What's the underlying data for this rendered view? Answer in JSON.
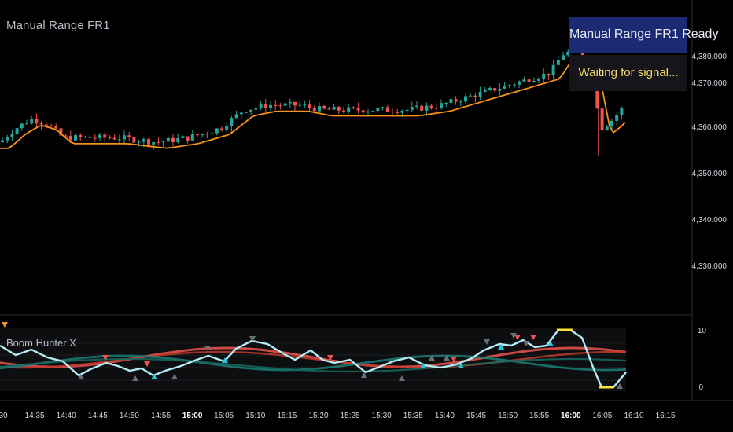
{
  "price_pane": {
    "title": "Manual Range FR1",
    "y_ticks": [
      "4,380.000",
      "4,370.000",
      "4,360.000",
      "4,350.000",
      "4,340.000",
      "4,330.000"
    ]
  },
  "status": {
    "ready_label": "Manual Range FR1 Ready",
    "waiting_label": "Waiting for signal...",
    "ready_bg": "#1b2a73",
    "waiting_color": "#f5d96b"
  },
  "indicator_pane": {
    "title": "Boom Hunter X",
    "y_ticks": [
      "10",
      "0"
    ]
  },
  "time_axis": {
    "labels": [
      "30",
      "14:35",
      "14:40",
      "14:45",
      "14:50",
      "14:55",
      "15:00",
      "15:05",
      "15:10",
      "15:15",
      "15:20",
      "15:25",
      "15:30",
      "15:35",
      "15:40",
      "15:45",
      "15:50",
      "15:55",
      "16:00",
      "16:05",
      "16:10",
      "16:15"
    ]
  },
  "colors": {
    "bull": "#26a69a",
    "bear": "#ef5350",
    "ma_line": "#f7931a",
    "osc_line": "#b3ecf7",
    "signal_yellow": "#ffe135"
  }
}
